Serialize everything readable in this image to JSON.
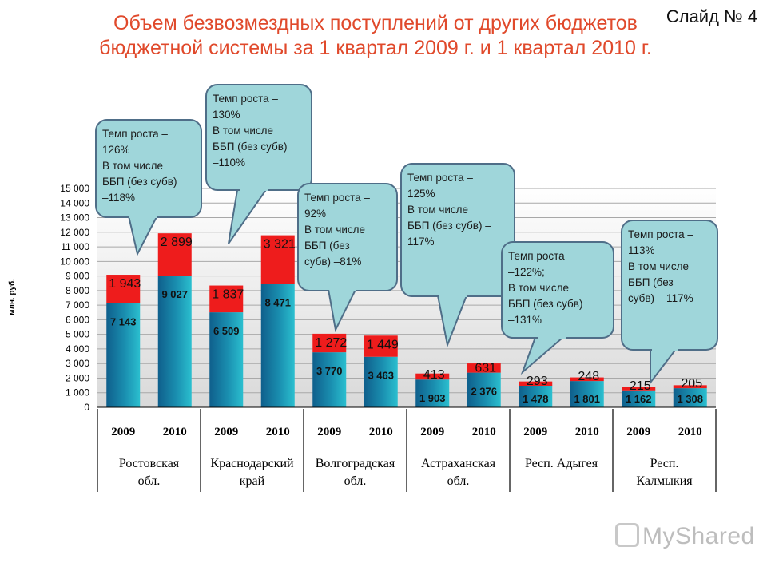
{
  "slide": {
    "title_line1": "Объем безвозмездных поступлений от других бюджетов",
    "title_line2": "бюджетной системы за 1 квартал 2009 г. и 1 квартал 2010 г.",
    "slide_number": "Слайд № 4",
    "watermark": "MyShared"
  },
  "colors": {
    "base": "#1a8fb0",
    "top": "#ee1c1c",
    "callout": "#9fd6da"
  },
  "chart_data": {
    "type": "bar",
    "stacked": true,
    "ylabel": "млн. руб.",
    "ylim": [
      0,
      15000
    ],
    "yticks": [
      "0",
      "1 000",
      "2 000",
      "3 000",
      "4 000",
      "5 000",
      "6 000",
      "7 000",
      "8 000",
      "9 000",
      "10 000",
      "11 000",
      "12 000",
      "13 000",
      "14 000",
      "15 000"
    ],
    "regions": [
      {
        "name_lines": [
          "Ростовская",
          "обл."
        ],
        "bars": [
          {
            "year": "2009",
            "base": 7143,
            "base_label": "7 143",
            "top": 1943,
            "top_label": "1 943"
          },
          {
            "year": "2010",
            "base": 9027,
            "base_label": "9 027",
            "top": 2899,
            "top_label": "2 899"
          }
        ]
      },
      {
        "name_lines": [
          "Краснодарский",
          "край"
        ],
        "bars": [
          {
            "year": "2009",
            "base": 6509,
            "base_label": "6 509",
            "top": 1837,
            "top_label": "1 837"
          },
          {
            "year": "2010",
            "base": 8471,
            "base_label": "8 471",
            "top": 3321,
            "top_label": "3 321"
          }
        ]
      },
      {
        "name_lines": [
          "Волгоградская",
          "обл."
        ],
        "bars": [
          {
            "year": "2009",
            "base": 3770,
            "base_label": "3 770",
            "top": 1272,
            "top_label": "1 272"
          },
          {
            "year": "2010",
            "base": 3463,
            "base_label": "3 463",
            "top": 1449,
            "top_label": "1 449"
          }
        ]
      },
      {
        "name_lines": [
          "Астраханская",
          "обл."
        ],
        "bars": [
          {
            "year": "2009",
            "base": 1903,
            "base_label": "1 903",
            "top": 413,
            "top_label": "413"
          },
          {
            "year": "2010",
            "base": 2376,
            "base_label": "2 376",
            "top": 631,
            "top_label": "631"
          }
        ]
      },
      {
        "name_lines": [
          "Респ.  Адыгея"
        ],
        "bars": [
          {
            "year": "2009",
            "base": 1478,
            "base_label": "1 478",
            "top": 293,
            "top_label": "293"
          },
          {
            "year": "2010",
            "base": 1801,
            "base_label": "1 801",
            "top": 248,
            "top_label": "248"
          }
        ]
      },
      {
        "name_lines": [
          "Респ.",
          "Калмыкия"
        ],
        "bars": [
          {
            "year": "2009",
            "base": 1162,
            "base_label": "1 162",
            "top": 215,
            "top_label": "215"
          },
          {
            "year": "2010",
            "base": 1308,
            "base_label": "1 308",
            "top": 205,
            "top_label": "205"
          }
        ]
      }
    ],
    "callouts": [
      {
        "region": "Ростовская обл.",
        "lines": [
          "Темп роста –",
          "126%",
          "В том числе",
          "ББП (без субв)",
          "–118%"
        ]
      },
      {
        "region": "Краснодарский край",
        "lines": [
          "Темп роста –",
          "130%",
          "В том числе",
          "ББП (без субв)",
          "–110%"
        ]
      },
      {
        "region": "Волгоградская обл.",
        "lines": [
          "Темп роста –",
          "92%",
          "В том числе",
          "ББП (без",
          "субв) –81%"
        ]
      },
      {
        "region": "Астраханская обл.",
        "lines": [
          "Темп роста –",
          "125%",
          "В том числе",
          "ББП (без субв) –",
          "117%"
        ]
      },
      {
        "region": "Респ. Адыгея",
        "lines": [
          "Темп роста",
          "–122%;",
          "В том числе",
          "ББП (без субв)",
          "–131%"
        ]
      },
      {
        "region": "Респ. Калмыкия",
        "lines": [
          "Темп роста –",
          "113%",
          "В том числе",
          "ББП (без",
          "субв) – 117%"
        ]
      }
    ]
  }
}
